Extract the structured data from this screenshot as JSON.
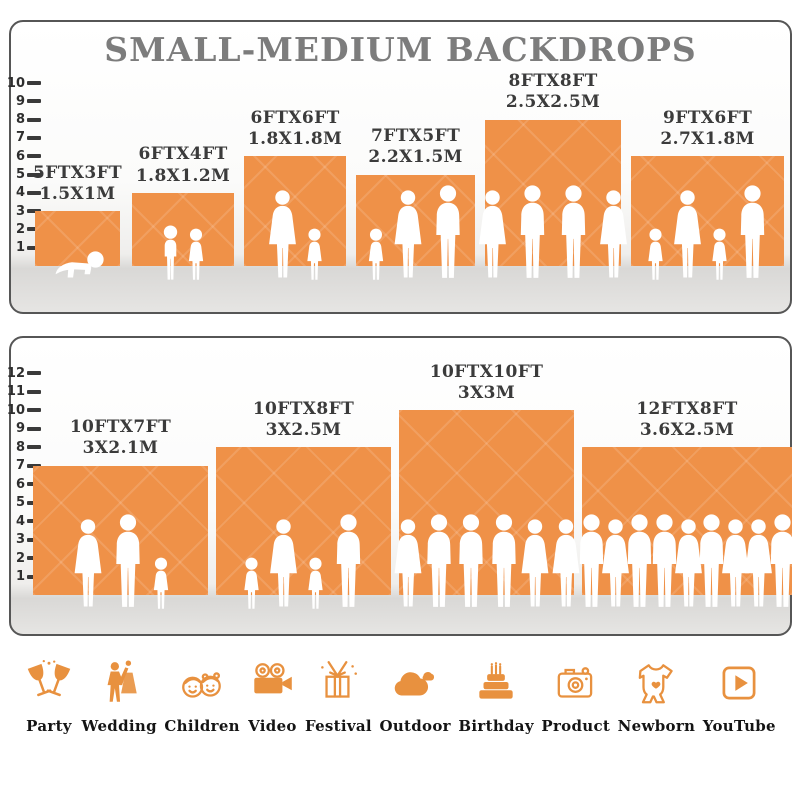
{
  "title": "SMALL-MEDIUM BACKDROPS",
  "colors": {
    "backdrop_orange": "#EF9148",
    "icon_orange": "#E8913F",
    "title_gray": "#7C7C7C",
    "label_dark": "#3B3B3B",
    "ruler_dark": "#3A3A3A"
  },
  "chart_data": [
    {
      "type": "bar",
      "title": "SMALL-MEDIUM BACKDROPS",
      "ylabel": "height ruler (ft)",
      "ylim": [
        0,
        10
      ],
      "yticks": [
        1,
        2,
        3,
        4,
        5,
        6,
        7,
        8,
        9,
        10
      ],
      "grid": false,
      "legend": "none",
      "bars": [
        {
          "size_ft": "5FTX3FT",
          "size_m": "1.5X1M",
          "width_ft": 5,
          "height_ft": 3,
          "people": [
            "baby"
          ]
        },
        {
          "size_ft": "6FTX4FT",
          "size_m": "1.8X1.2M",
          "width_ft": 6,
          "height_ft": 4,
          "people": [
            "boy",
            "girl"
          ]
        },
        {
          "size_ft": "6FTX6FT",
          "size_m": "1.8X1.8M",
          "width_ft": 6,
          "height_ft": 6,
          "people": [
            "woman",
            "girl"
          ]
        },
        {
          "size_ft": "7FTX5FT",
          "size_m": "2.2X1.5M",
          "width_ft": 7,
          "height_ft": 5,
          "people": [
            "girl",
            "woman",
            "man"
          ]
        },
        {
          "size_ft": "8FTX8FT",
          "size_m": "2.5X2.5M",
          "width_ft": 8,
          "height_ft": 8,
          "people": [
            "woman",
            "man",
            "man",
            "woman"
          ]
        },
        {
          "size_ft": "9FTX6FT",
          "size_m": "2.7X1.8M",
          "width_ft": 9,
          "height_ft": 6,
          "people": [
            "girl",
            "woman",
            "girl",
            "man"
          ]
        }
      ]
    },
    {
      "type": "bar",
      "title": "",
      "ylabel": "height ruler (ft)",
      "ylim": [
        0,
        12
      ],
      "yticks": [
        1,
        2,
        3,
        4,
        5,
        6,
        7,
        8,
        9,
        10,
        11,
        12
      ],
      "grid": false,
      "legend": "none",
      "bars": [
        {
          "size_ft": "10FTX7FT",
          "size_m": "3X2.1M",
          "width_ft": 10,
          "height_ft": 7,
          "people": [
            "woman",
            "man",
            "girl"
          ]
        },
        {
          "size_ft": "10FTX8FT",
          "size_m": "3X2.5M",
          "width_ft": 10,
          "height_ft": 8,
          "people": [
            "girl",
            "woman",
            "girl",
            "man"
          ]
        },
        {
          "size_ft": "10FTX10FT",
          "size_m": "3X3M",
          "width_ft": 10,
          "height_ft": 10,
          "people": [
            "woman",
            "man",
            "man",
            "man",
            "woman",
            "woman"
          ]
        },
        {
          "size_ft": "12FTX8FT",
          "size_m": "3.6X2.5M",
          "width_ft": 12,
          "height_ft": 8,
          "people": [
            "man",
            "woman",
            "man",
            "man",
            "woman",
            "man",
            "woman",
            "woman",
            "man"
          ]
        }
      ]
    }
  ],
  "categories": [
    {
      "label": "Party",
      "icon": "party-icon"
    },
    {
      "label": "Wedding",
      "icon": "wedding-icon"
    },
    {
      "label": "Children",
      "icon": "children-icon"
    },
    {
      "label": "Video",
      "icon": "video-icon"
    },
    {
      "label": "Festival",
      "icon": "festival-icon"
    },
    {
      "label": "Outdoor",
      "icon": "outdoor-icon"
    },
    {
      "label": "Birthday",
      "icon": "birthday-icon"
    },
    {
      "label": "Product",
      "icon": "product-icon"
    },
    {
      "label": "Newborn",
      "icon": "newborn-icon"
    },
    {
      "label": "YouTube",
      "icon": "youtube-icon"
    }
  ]
}
